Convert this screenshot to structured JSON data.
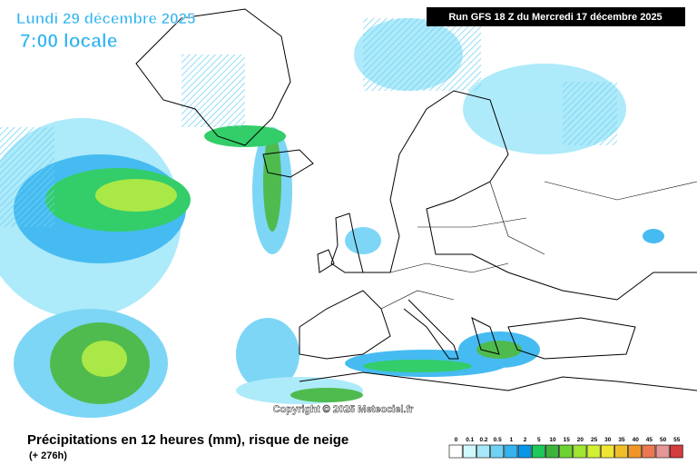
{
  "header": {
    "date": "Lundi 29 décembre 2025",
    "time": "7:00 locale",
    "run": "Run GFS 18 Z du Mercredi 17 décembre 2025"
  },
  "copyright": "Copyright © 2025 Meteociel.fr",
  "footer": {
    "title": "Précipitations en 12 heures (mm), risque de neige",
    "lead": "(+ 276h)"
  },
  "legend": [
    {
      "label": "0",
      "color": "#ffffff"
    },
    {
      "label": "0.1",
      "color": "#d2f8ff"
    },
    {
      "label": "0.2",
      "color": "#a5e8fa"
    },
    {
      "label": "0.5",
      "color": "#6fd2f5"
    },
    {
      "label": "1",
      "color": "#32b4f0"
    },
    {
      "label": "2",
      "color": "#0a96e6"
    },
    {
      "label": "5",
      "color": "#1ec85a"
    },
    {
      "label": "10",
      "color": "#3cb43c"
    },
    {
      "label": "15",
      "color": "#6ed232"
    },
    {
      "label": "20",
      "color": "#a0e632"
    },
    {
      "label": "25",
      "color": "#d2f032"
    },
    {
      "label": "30",
      "color": "#f0e632"
    },
    {
      "label": "35",
      "color": "#f0be28"
    },
    {
      "label": "40",
      "color": "#f09628"
    },
    {
      "label": "45",
      "color": "#eb7850"
    },
    {
      "label": "50",
      "color": "#e69696"
    },
    {
      "label": "55",
      "color": "#d23c3c"
    }
  ]
}
